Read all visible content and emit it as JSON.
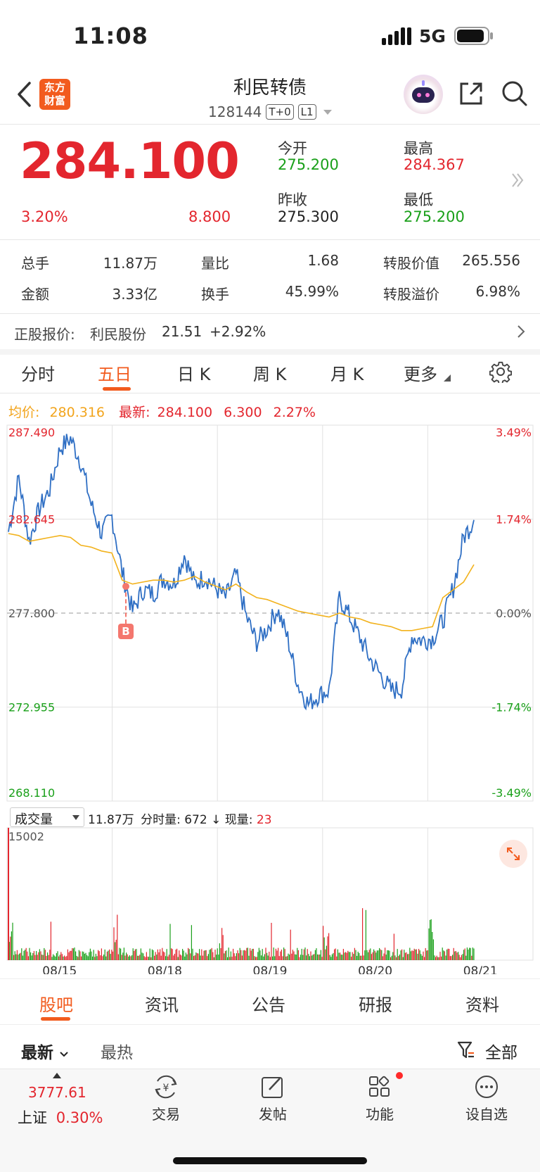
{
  "status": {
    "time": "11:08",
    "network": "5G"
  },
  "header": {
    "logo_line1": "东方",
    "logo_line2": "财富",
    "title": "利民转债",
    "code": "128144",
    "tag1": "T+0",
    "tag2": "L1"
  },
  "quote": {
    "price": "284.100",
    "change_pct": "3.20%",
    "change": "8.800",
    "open_label": "今开",
    "open": "275.200",
    "high_label": "最高",
    "high": "284.367",
    "prev_label": "昨收",
    "prev": "275.300",
    "low_label": "最低",
    "low": "275.200"
  },
  "stats": {
    "r1": [
      {
        "label": "总手",
        "value": "11.87万"
      },
      {
        "label": "量比",
        "value": "1.68"
      },
      {
        "label": "转股价值",
        "value": "265.556"
      }
    ],
    "r2": [
      {
        "label": "金额",
        "value": "3.33亿"
      },
      {
        "label": "换手",
        "value": "45.99%"
      },
      {
        "label": "转股溢价",
        "value": "6.98%"
      }
    ]
  },
  "underlying": {
    "label": "正股报价:",
    "name": "利民股份",
    "price": "21.51",
    "change": "+2.92%"
  },
  "tabs": [
    "分时",
    "五日",
    "日 K",
    "周 K",
    "月 K",
    "更多"
  ],
  "active_tab": 1,
  "chart_info": {
    "avg_label": "均价:",
    "avg": "280.316",
    "latest_label": "最新:",
    "latest": "284.100",
    "chg": "6.300",
    "pct": "2.27%"
  },
  "chart_data": {
    "type": "line",
    "y_ticks_left": [
      "287.490",
      "282.645",
      "277.800",
      "272.955",
      "268.110"
    ],
    "y_ticks_right": [
      "3.49%",
      "1.74%",
      "0.00%",
      "-1.74%",
      "-3.49%"
    ],
    "ylim": [
      268.11,
      287.49
    ],
    "baseline": 277.8,
    "days": [
      "08/15",
      "08/18",
      "08/19",
      "08/20",
      "08/21"
    ],
    "series": [
      {
        "values": [
          282.0,
          284.8,
          281.5,
          283.2,
          284.2,
          286.3,
          286.8,
          285.6,
          283.4,
          281.9,
          282.8,
          279.9,
          277.9,
          279.0,
          278.8,
          279.6,
          279.3,
          280.8,
          279.3,
          279.7,
          279.1,
          278.6,
          279.8,
          277.6,
          276.3,
          277.0,
          278.0,
          276.5,
          274.1,
          273.1,
          273.6,
          273.8,
          278.6,
          277.6,
          276.5,
          275.4,
          274.6,
          273.8,
          273.9,
          276.6,
          276.4,
          276.5,
          277.4,
          279.1,
          281.7,
          282.6
        ]
      },
      {
        "values": [
          281.9,
          281.8,
          281.5,
          281.6,
          281.7,
          281.8,
          281.7,
          281.3,
          281.2,
          281.0,
          280.9,
          279.5,
          279.3,
          279.4,
          279.5,
          279.5,
          279.4,
          279.5,
          279.7,
          279.4,
          279.2,
          279.0,
          279.3,
          278.9,
          278.6,
          278.5,
          278.3,
          278.1,
          277.9,
          277.8,
          277.7,
          277.6,
          277.8,
          277.6,
          277.5,
          277.3,
          277.2,
          277.1,
          276.9,
          276.9,
          277.0,
          277.1,
          278.6,
          279.0,
          279.4,
          280.3
        ]
      }
    ]
  },
  "volume": {
    "selector": "成交量",
    "total": "11.87万",
    "seg_label": "分时量:",
    "seg_value": "672",
    "arrow": "↓",
    "now_label": "现量:",
    "now_value": "23",
    "max_label": "15002"
  },
  "bottom_tabs": [
    "股吧",
    "资讯",
    "公告",
    "研报",
    "资料"
  ],
  "feed": {
    "newest": "最新",
    "hottest": "最热",
    "filter": "全部"
  },
  "toolbar": {
    "index_value": "3777.61",
    "index_name": "上证",
    "index_pct": "0.30%",
    "items": [
      "交易",
      "发帖",
      "功能",
      "设自选"
    ]
  }
}
